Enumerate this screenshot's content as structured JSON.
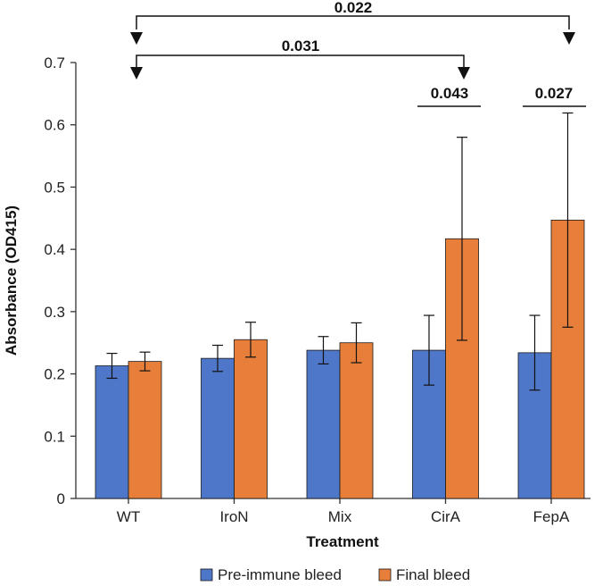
{
  "colors": {
    "pre": "#4f77c9",
    "final": "#e77f3b",
    "axis": "#333333",
    "bar_stroke": "#1a1a1a"
  },
  "chart_data": {
    "type": "bar",
    "title": "",
    "xlabel": "Treatment",
    "ylabel": "Absorbance (OD415)",
    "ylim": [
      0,
      0.7
    ],
    "yticks": [
      "0",
      "0.1",
      "0.2",
      "0.3",
      "0.4",
      "0.5",
      "0.6",
      "0.7"
    ],
    "categories": [
      "WT",
      "IroN",
      "Mix",
      "CirA",
      "FepA"
    ],
    "series": [
      {
        "name": "Pre-immune bleed",
        "values": [
          0.213,
          0.225,
          0.238,
          0.238,
          0.234
        ],
        "error": [
          0.02,
          0.021,
          0.022,
          0.056,
          0.06
        ]
      },
      {
        "name": "Final bleed",
        "values": [
          0.22,
          0.255,
          0.25,
          0.417,
          0.447
        ],
        "error": [
          0.015,
          0.028,
          0.032,
          0.163,
          0.172
        ]
      }
    ],
    "annotations": [
      {
        "label": "0.022",
        "type": "bracket",
        "from": "WT",
        "to": "FepA (Final bleed)"
      },
      {
        "label": "0.031",
        "type": "bracket",
        "from": "WT",
        "to": "CirA (Final bleed)"
      },
      {
        "label": "0.043",
        "type": "line",
        "over": "CirA"
      },
      {
        "label": "0.027",
        "type": "line",
        "over": "FepA"
      }
    ],
    "legend_position": "bottom"
  }
}
